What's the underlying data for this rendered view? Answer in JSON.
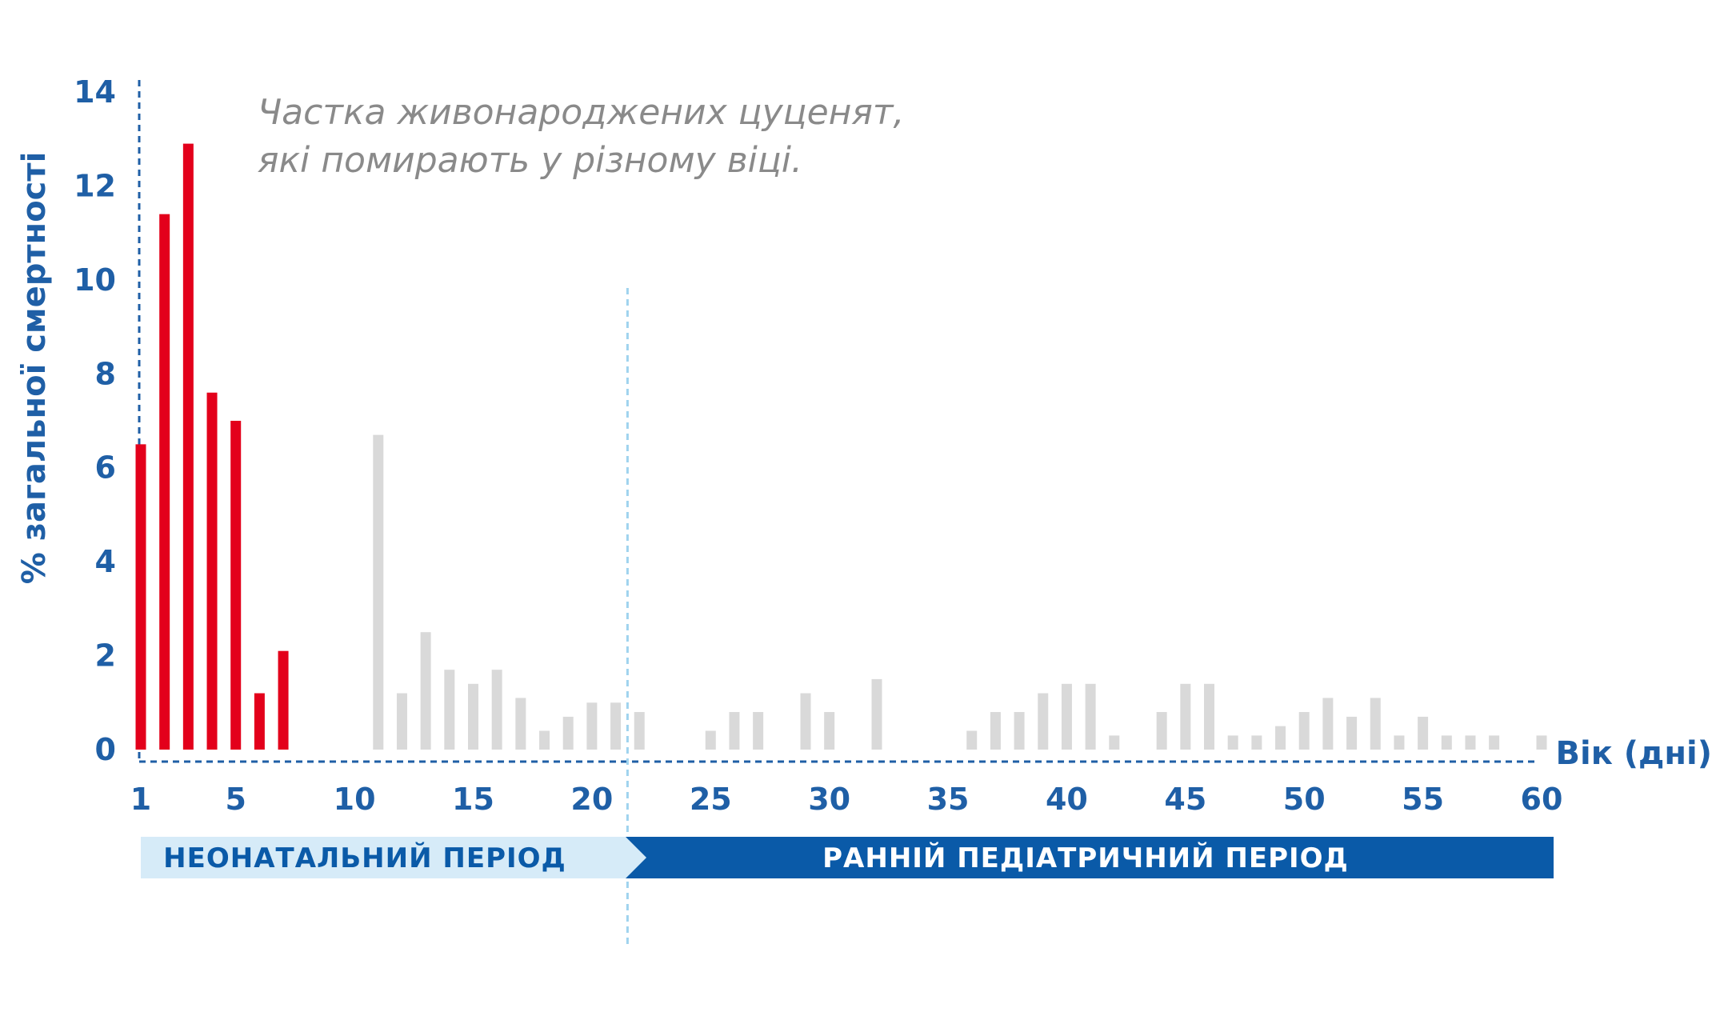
{
  "colors": {
    "axis": "#1f5fa6",
    "highlight": "#e3001b",
    "bar_grey": "#d9d9d9",
    "caption": "#8a8a8a",
    "divider": "#9fd3ee",
    "period_light": "#d6ebf8",
    "period_dark": "#0a5aa8"
  },
  "caption": {
    "line1": "Частка живонароджених цуценят,",
    "line2": "які помирають у  різному віці."
  },
  "chart_data": {
    "type": "bar",
    "title": "",
    "xlabel": "Вік (дні)",
    "ylabel": "% загальної смертності",
    "xlim": [
      1,
      60
    ],
    "ylim": [
      0,
      14
    ],
    "y_ticks": [
      0,
      2,
      4,
      6,
      8,
      10,
      12,
      14
    ],
    "x_ticks": [
      1,
      5,
      10,
      15,
      20,
      25,
      30,
      35,
      40,
      45,
      50,
      55,
      60
    ],
    "divider_x": 21.5,
    "series": [
      {
        "color": "#e3001b",
        "x": [
          1,
          2,
          3,
          4,
          5,
          6,
          7
        ],
        "values": [
          6.5,
          11.4,
          12.9,
          7.6,
          7.0,
          1.2,
          2.1
        ]
      },
      {
        "color": "#d9d9d9",
        "x": [
          11,
          12,
          13,
          14,
          15,
          16,
          17,
          18,
          19,
          20,
          21,
          22,
          25,
          26,
          27,
          29,
          30,
          32,
          36,
          37,
          38,
          39,
          40,
          41,
          42,
          44,
          45,
          46,
          47,
          48,
          49,
          50,
          51,
          52,
          53,
          54,
          55,
          56,
          57,
          58,
          60
        ],
        "values": [
          6.7,
          1.2,
          2.5,
          1.7,
          1.4,
          1.7,
          1.1,
          0.4,
          0.7,
          1.0,
          1.0,
          0.8,
          0.4,
          0.8,
          0.8,
          1.2,
          0.8,
          1.5,
          0.4,
          0.8,
          0.8,
          1.2,
          1.4,
          1.4,
          0.3,
          0.8,
          1.4,
          1.4,
          0.3,
          0.3,
          0.5,
          0.8,
          1.1,
          0.7,
          1.1,
          0.3,
          0.7,
          0.3,
          0.3,
          0.3,
          0.3
        ]
      }
    ]
  },
  "periods": {
    "neonatal": "НЕОНАТАЛЬНИЙ ПЕРІОД",
    "pediatric": "РАННІЙ ПЕДІАТРИЧНИЙ ПЕРІОД"
  }
}
